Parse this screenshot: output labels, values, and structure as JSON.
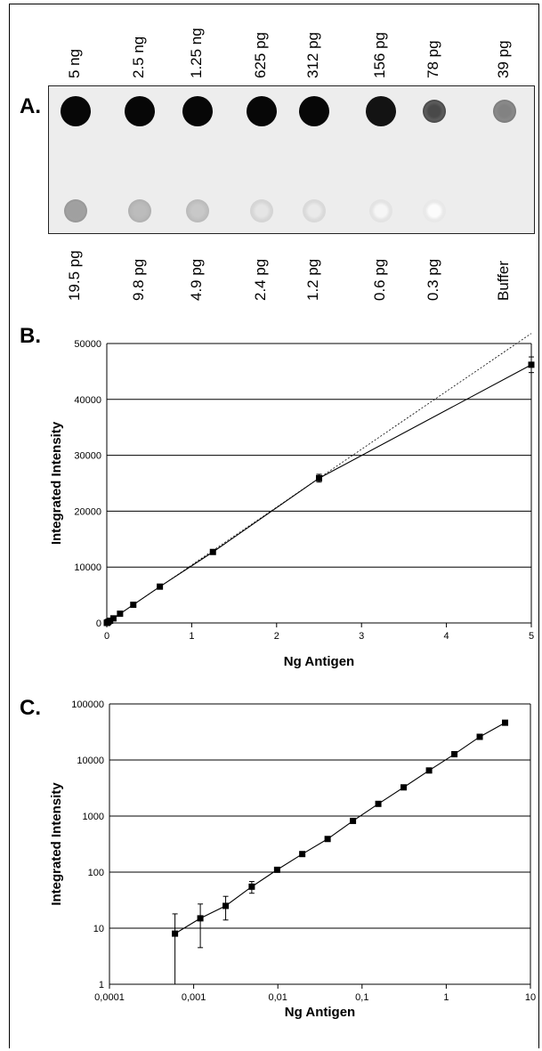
{
  "panel_a": {
    "label": "A.",
    "top_row": [
      "5 ng",
      "2.5 ng",
      "1.25 ng",
      "625 pg",
      "312 pg",
      "156 pg",
      "78 pg",
      "39 pg"
    ],
    "bottom_row": [
      "19.5 pg",
      "9.8 pg",
      "4.9 pg",
      "2.4 pg",
      "1.2 pg",
      "0.6 pg",
      "0.3 pg",
      "Buffer"
    ],
    "top_intensity": [
      1.0,
      1.0,
      1.0,
      1.0,
      1.0,
      0.95,
      0.8,
      0.55
    ],
    "bottom_intensity": [
      0.42,
      0.3,
      0.25,
      0.12,
      0.1,
      0.05,
      0.02,
      0.0
    ]
  },
  "chart_data": [
    {
      "label": "B.",
      "type": "line",
      "xlabel": "Ng Antigen",
      "ylabel": "Integrated Intensity",
      "xlim": [
        0,
        5
      ],
      "ylim": [
        0,
        50000
      ],
      "x_ticks": [
        "0",
        "1",
        "2",
        "3",
        "4",
        "5"
      ],
      "y_ticks": [
        "0",
        "10000",
        "20000",
        "30000",
        "40000",
        "50000"
      ],
      "grid": "horizontal",
      "series": [
        {
          "style": "solid-with-markers",
          "x": [
            0.0006,
            0.0012,
            0.0024,
            0.0049,
            0.0098,
            0.0195,
            0.039,
            0.078,
            0.156,
            0.312,
            0.625,
            1.25,
            2.5,
            5
          ],
          "y": [
            8,
            15,
            25,
            55,
            110,
            210,
            390,
            820,
            1650,
            3250,
            6500,
            12700,
            25900,
            46200
          ],
          "errors": [
            0,
            0,
            0,
            0,
            0,
            0,
            0,
            0,
            0,
            0,
            0,
            300,
            700,
            1400
          ]
        },
        {
          "style": "dotted",
          "x": [
            0,
            5
          ],
          "y": [
            0,
            51800
          ]
        }
      ]
    },
    {
      "label": "C.",
      "type": "line",
      "scale": "log-log",
      "xlabel": "Ng Antigen",
      "ylabel": "Integrated Intensity",
      "xlim": [
        0.0001,
        10
      ],
      "ylim": [
        1,
        100000
      ],
      "x_ticks": [
        "0,0001",
        "0,001",
        "0,01",
        "0,1",
        "1",
        "10"
      ],
      "y_ticks": [
        "1",
        "10",
        "100",
        "1000",
        "10000",
        "100000"
      ],
      "grid": "horizontal",
      "series": [
        {
          "style": "solid-with-markers",
          "x": [
            0.0006,
            0.0012,
            0.0024,
            0.0049,
            0.0098,
            0.0195,
            0.039,
            0.078,
            0.156,
            0.312,
            0.625,
            1.25,
            2.5,
            5
          ],
          "y": [
            8,
            15,
            25,
            55,
            110,
            210,
            390,
            820,
            1650,
            3250,
            6500,
            12700,
            25900,
            46200
          ],
          "err_low": [
            1,
            4.5,
            14,
            42,
            100,
            200,
            380,
            800,
            1620,
            3200,
            6400,
            12500,
            25000,
            45000
          ],
          "err_high": [
            18,
            27,
            37,
            68,
            120,
            220,
            400,
            840,
            1680,
            3300,
            6600,
            12900,
            26800,
            47500
          ]
        }
      ]
    }
  ]
}
